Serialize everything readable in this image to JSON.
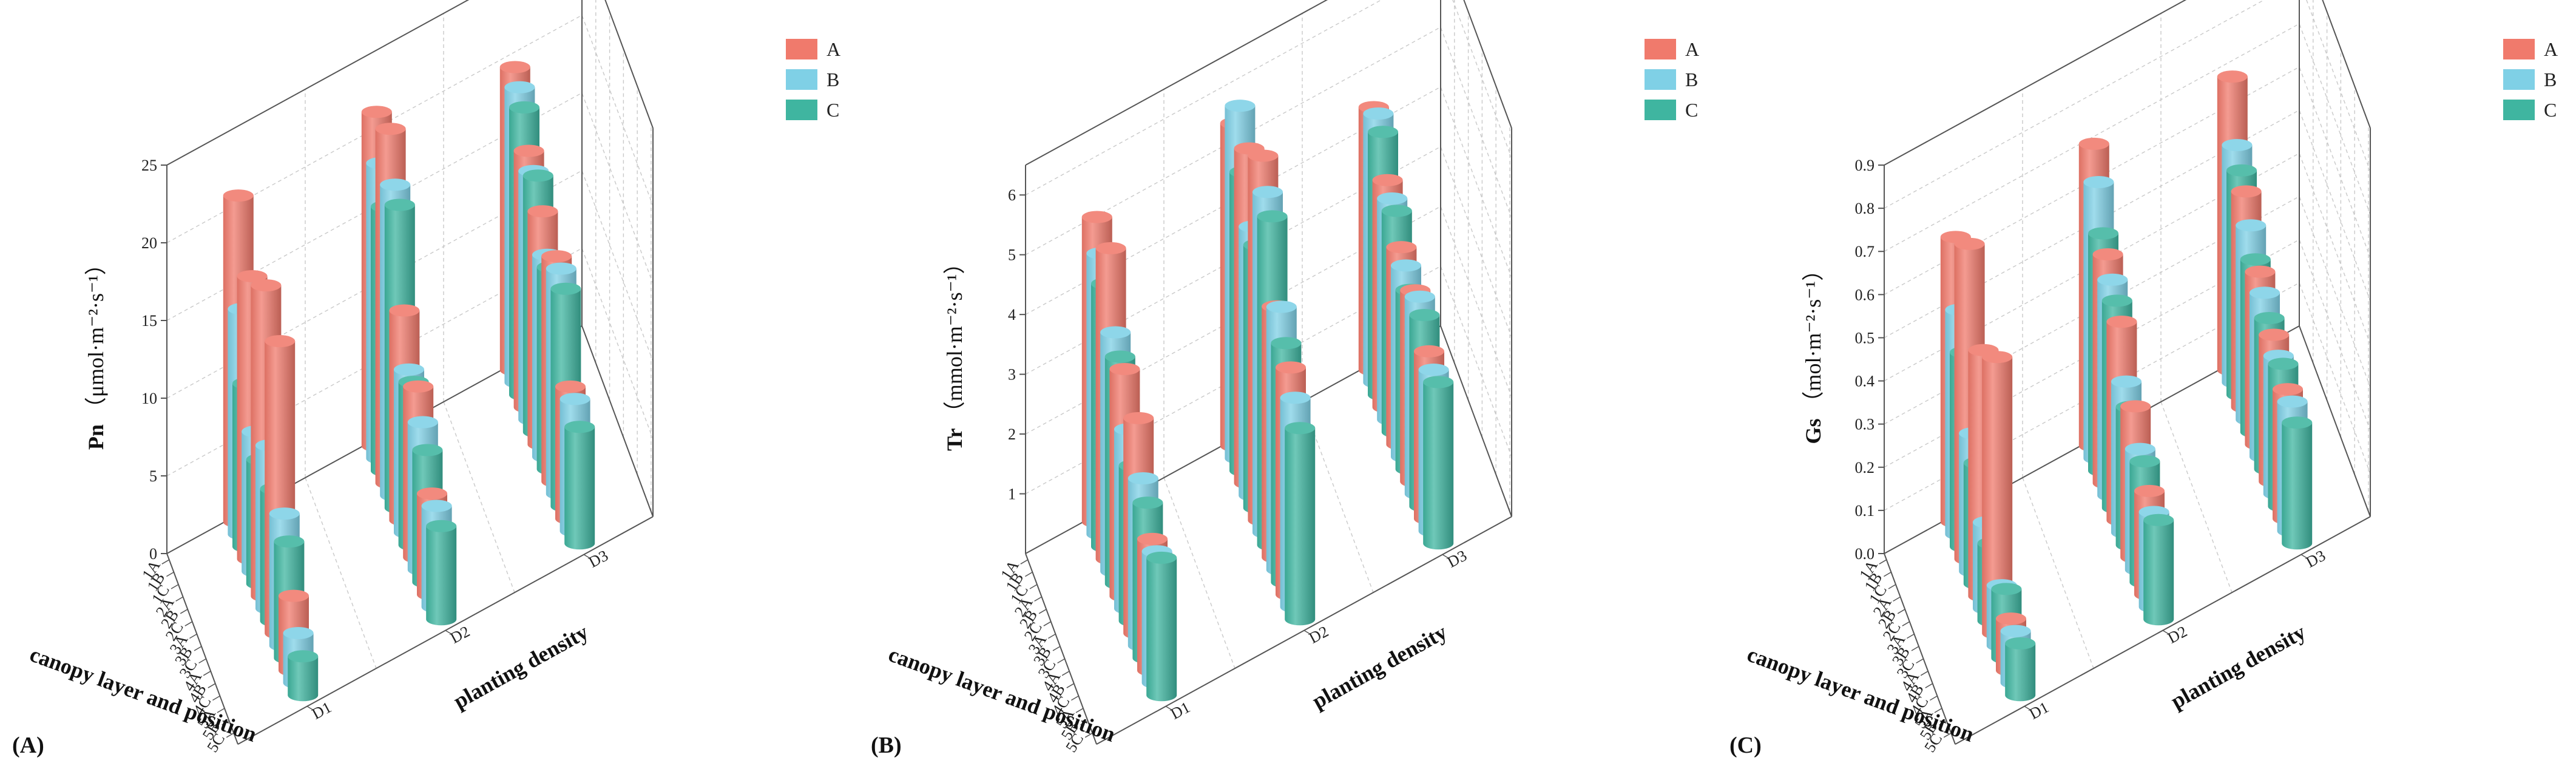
{
  "figure": {
    "legend_series": [
      "A",
      "B",
      "C"
    ],
    "colors": {
      "A": "#f07a6c",
      "B": "#7fd0e6",
      "C": "#3fb5a0",
      "grid": "#c9c9c9",
      "axis": "#555555"
    },
    "x_label": "canopy layer and position",
    "x_ticks": [
      "1A",
      "1B",
      "1C",
      "2A",
      "2B",
      "2C",
      "3A",
      "3B",
      "3C",
      "4A",
      "4B",
      "4C",
      "5A",
      "5B",
      "5C"
    ],
    "y_label": "planting density",
    "y_ticks": [
      "D1",
      "D2",
      "D3"
    ]
  },
  "chart_data": [
    {
      "type": "bar",
      "panel_label": "(A)",
      "title": "",
      "zlabel_main": "Pn",
      "zlabel_unit": "（μmol·m⁻²·s⁻¹）",
      "zlim": [
        0,
        25
      ],
      "z_ticks": [
        "0",
        "5",
        "10",
        "15",
        "20",
        "25"
      ],
      "categories": [
        "1A",
        "1B",
        "1C",
        "2A",
        "2B",
        "2C",
        "3A",
        "3B",
        "3C",
        "4A",
        "4B",
        "4C",
        "5A",
        "5B",
        "5C"
      ],
      "series": [
        {
          "name": "D1",
          "values": [
            21.0,
            14.5,
            10.5,
            18.2,
            9.0,
            8.0,
            20.0,
            10.5,
            8.5,
            18.8,
            8.5,
            7.5,
            4.8,
            3.2,
            2.5
          ]
        },
        {
          "name": "D2",
          "values": [
            21.5,
            19.0,
            17.0,
            22.8,
            20.0,
            19.5,
            13.5,
            10.5,
            10.5,
            11.0,
            9.5,
            8.5,
            6.5,
            6.5,
            6.0
          ]
        },
        {
          "name": "D3",
          "values": [
            19.5,
            19.0,
            18.5,
            16.5,
            16.0,
            16.5,
            15.0,
            13.0,
            13.0,
            14.5,
            14.5,
            14.0,
            8.5,
            8.5,
            7.5
          ]
        }
      ]
    },
    {
      "type": "bar",
      "panel_label": "(B)",
      "title": "",
      "zlabel_main": "Tr",
      "zlabel_unit": "（mmol·m⁻²·s⁻¹）",
      "zlim": [
        0,
        6.5
      ],
      "z_ticks": [
        "1",
        "2",
        "3",
        "4",
        "5",
        "6"
      ],
      "categories": [
        "1A",
        "1B",
        "1C",
        "2A",
        "2B",
        "2C",
        "3A",
        "3B",
        "3C",
        "4A",
        "4B",
        "4C",
        "5A",
        "5B",
        "5C"
      ],
      "series": [
        {
          "name": "D1",
          "values": [
            5.1,
            4.7,
            4.4,
            5.2,
            4.0,
            3.8,
            3.8,
            3.0,
            2.6,
            3.6,
            2.8,
            2.6,
            2.2,
            2.2,
            2.3
          ]
        },
        {
          "name": "D2",
          "values": [
            5.4,
            5.9,
            5.0,
            5.6,
            4.5,
            4.4,
            6.1,
            5.7,
            5.5,
            4.2,
            4.4,
            4.0,
            3.8,
            3.5,
            3.2
          ]
        },
        {
          "name": "D3",
          "values": [
            4.4,
            4.5,
            4.4,
            3.8,
            3.7,
            3.7,
            3.3,
            3.2,
            3.0,
            3.2,
            3.3,
            3.2,
            2.8,
            2.7,
            2.7
          ]
        }
      ]
    },
    {
      "type": "bar",
      "panel_label": "(C)",
      "title": "",
      "zlabel_main": "Gs",
      "zlabel_unit": "（mol·m⁻²·s⁻¹）",
      "zlim": [
        0,
        0.9
      ],
      "z_ticks": [
        "0.0",
        "0.1",
        "0.2",
        "0.3",
        "0.4",
        "0.5",
        "0.6",
        "0.7",
        "0.8",
        "0.9"
      ],
      "categories": [
        "1A",
        "1B",
        "1C",
        "2A",
        "2B",
        "2C",
        "3A",
        "3B",
        "3C",
        "4A",
        "4B",
        "4C",
        "5A",
        "5B",
        "5C"
      ],
      "series": [
        {
          "name": "D1",
          "values": [
            0.66,
            0.52,
            0.45,
            0.73,
            0.32,
            0.28,
            0.57,
            0.2,
            0.18,
            0.64,
            0.14,
            0.16,
            0.12,
            0.12,
            0.12
          ]
        },
        {
          "name": "D2",
          "values": [
            0.7,
            0.64,
            0.55,
            0.53,
            0.5,
            0.48,
            0.46,
            0.35,
            0.32,
            0.35,
            0.28,
            0.28,
            0.24,
            0.22,
            0.23
          ]
        },
        {
          "name": "D3",
          "values": [
            0.68,
            0.55,
            0.52,
            0.5,
            0.45,
            0.4,
            0.4,
            0.38,
            0.35,
            0.34,
            0.32,
            0.33,
            0.3,
            0.3,
            0.28
          ]
        }
      ]
    }
  ]
}
